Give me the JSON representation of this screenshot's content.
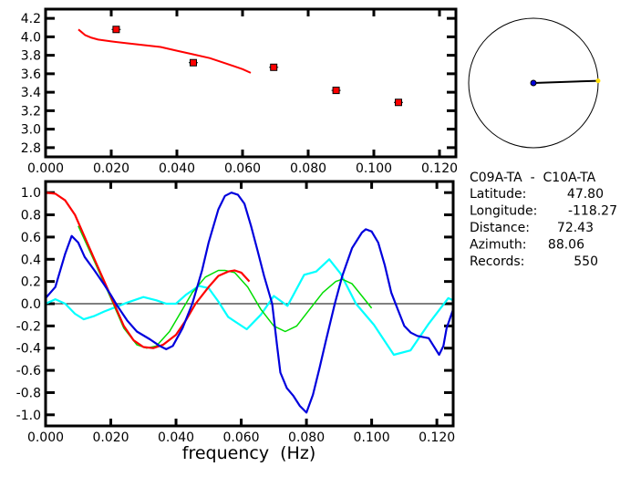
{
  "chart_data": [
    {
      "type": "scatter",
      "xlim": [
        0,
        0.125
      ],
      "ylim": [
        2.7,
        4.3
      ],
      "xticks": [
        "0.000",
        "0.020",
        "0.040",
        "0.060",
        "0.080",
        "0.100",
        "0.120"
      ],
      "yticks": [
        "2.8",
        "3.0",
        "3.2",
        "3.4",
        "3.6",
        "3.8",
        "4.0",
        "4.2"
      ],
      "points": [
        {
          "x": 0.0215,
          "y": 4.08
        },
        {
          "x": 0.045,
          "y": 3.72
        },
        {
          "x": 0.0695,
          "y": 3.67
        },
        {
          "x": 0.0885,
          "y": 3.42
        },
        {
          "x": 0.1075,
          "y": 3.29
        }
      ],
      "curve": {
        "color": "#ff0000",
        "x": [
          0.01,
          0.011,
          0.012,
          0.014,
          0.016,
          0.02,
          0.025,
          0.03,
          0.035,
          0.04,
          0.045,
          0.05,
          0.055,
          0.06,
          0.0625
        ],
        "y": [
          4.08,
          4.05,
          4.02,
          3.99,
          3.97,
          3.95,
          3.93,
          3.91,
          3.89,
          3.85,
          3.81,
          3.77,
          3.71,
          3.65,
          3.61
        ]
      },
      "point_color": "#ff0000"
    },
    {
      "type": "line",
      "xlabel": "frequency  (Hz)",
      "xlim": [
        0,
        0.125
      ],
      "ylim": [
        -1.1,
        1.1
      ],
      "xticks": [
        "0.000",
        "0.020",
        "0.040",
        "0.060",
        "0.080",
        "0.100",
        "0.120"
      ],
      "yticks": [
        "-1.0",
        "-0.8",
        "-0.6",
        "-0.4",
        "-0.2",
        "0.0",
        "0.2",
        "0.4",
        "0.6",
        "0.8",
        "1.0"
      ],
      "zero_line": true,
      "series": [
        {
          "color": "#00ffff",
          "x": [
            0,
            0.003,
            0.006,
            0.009,
            0.0117,
            0.015,
            0.018,
            0.0215,
            0.025,
            0.03,
            0.034,
            0.037,
            0.04,
            0.043,
            0.047,
            0.05,
            0.053,
            0.056,
            0.0617,
            0.066,
            0.07,
            0.0742,
            0.0793,
            0.083,
            0.087,
            0.0905,
            0.0952,
            0.1007,
            0.1068,
            0.1119,
            0.1175,
            0.1235,
            0.125
          ],
          "y": [
            0,
            0.04,
            0.0,
            -0.09,
            -0.14,
            -0.11,
            -0.07,
            -0.03,
            0.01,
            0.06,
            0.03,
            0,
            0.0,
            0.08,
            0.16,
            0.14,
            0.02,
            -0.12,
            -0.23,
            -0.1,
            0.07,
            -0.02,
            0.26,
            0.29,
            0.4,
            0.27,
            0,
            -0.19,
            -0.46,
            -0.42,
            -0.18,
            0.05,
            0.03
          ]
        },
        {
          "color": "#00dd00",
          "x": [
            0.01,
            0.015,
            0.02,
            0.024,
            0.028,
            0.031,
            0.034,
            0.038,
            0.042,
            0.045,
            0.049,
            0.053,
            0.055,
            0.058,
            0.062,
            0.066,
            0.07,
            0.0735,
            0.077,
            0.081,
            0.085,
            0.089,
            0.091,
            0.094,
            0.097,
            0.1
          ],
          "y": [
            0.7,
            0.38,
            0.05,
            -0.22,
            -0.37,
            -0.4,
            -0.38,
            -0.25,
            -0.05,
            0.1,
            0.24,
            0.3,
            0.3,
            0.28,
            0.15,
            -0.05,
            -0.2,
            -0.25,
            -0.2,
            -0.05,
            0.1,
            0.2,
            0.22,
            0.18,
            0.07,
            -0.04
          ]
        },
        {
          "color": "#ff0000",
          "x": [
            0,
            0.003,
            0.006,
            0.009,
            0.012,
            0.015,
            0.018,
            0.021,
            0.024,
            0.027,
            0.03,
            0.033,
            0.036,
            0.04,
            0.043,
            0.046,
            0.05,
            0.053,
            0.056,
            0.058,
            0.06,
            0.0625
          ],
          "y": [
            1.0,
            0.99,
            0.93,
            0.8,
            0.6,
            0.4,
            0.2,
            0.0,
            -0.2,
            -0.33,
            -0.39,
            -0.4,
            -0.37,
            -0.28,
            -0.15,
            0.0,
            0.15,
            0.25,
            0.29,
            0.3,
            0.28,
            0.2
          ]
        },
        {
          "color": "#0000dd",
          "x": [
            0,
            0.003,
            0.006,
            0.008,
            0.01,
            0.012,
            0.015,
            0.018,
            0.02,
            0.022,
            0.025,
            0.028,
            0.032,
            0.035,
            0.037,
            0.039,
            0.042,
            0.045,
            0.048,
            0.05,
            0.053,
            0.055,
            0.057,
            0.059,
            0.061,
            0.063,
            0.065,
            0.067,
            0.0695,
            0.071,
            0.072,
            0.074,
            0.076,
            0.078,
            0.08,
            0.082,
            0.084,
            0.086,
            0.0887,
            0.091,
            0.094,
            0.097,
            0.0982,
            0.1,
            0.102,
            0.104,
            0.106,
            0.108,
            0.11,
            0.112,
            0.114,
            0.1175,
            0.1207,
            0.122,
            0.123,
            0.125
          ],
          "y": [
            0.05,
            0.15,
            0.45,
            0.61,
            0.55,
            0.42,
            0.3,
            0.17,
            0.08,
            -0.02,
            -0.15,
            -0.25,
            -0.32,
            -0.38,
            -0.41,
            -0.38,
            -0.22,
            0.0,
            0.3,
            0.55,
            0.85,
            0.97,
            1.0,
            0.98,
            0.9,
            0.7,
            0.48,
            0.25,
            0.0,
            -0.38,
            -0.62,
            -0.76,
            -0.83,
            -0.92,
            -0.98,
            -0.82,
            -0.58,
            -0.33,
            0.0,
            0.25,
            0.5,
            0.64,
            0.67,
            0.65,
            0.55,
            0.35,
            0.1,
            -0.05,
            -0.2,
            -0.26,
            -0.29,
            -0.31,
            -0.46,
            -0.38,
            -0.22,
            -0.05
          ]
        }
      ]
    }
  ],
  "map": {
    "azimuth": 88.06,
    "center_color": "#0000dd",
    "end_color": "#ffdd00"
  },
  "info": {
    "title": "C09A-TA  -  C10A-TA",
    "rows": [
      {
        "label": "Latitude:",
        "value": "47.80"
      },
      {
        "label": "Longitude:",
        "value": "-118.27"
      },
      {
        "label": "Distance:",
        "value": "72.43"
      },
      {
        "label": "Azimuth:",
        "value": "88.06"
      },
      {
        "label": "Records:",
        "value": "550"
      }
    ]
  }
}
